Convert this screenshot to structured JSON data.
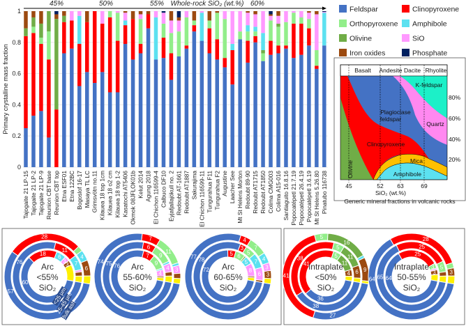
{
  "colors": {
    "feldspar": "#4472C4",
    "clinopyroxene": "#FF0000",
    "orthopyroxene": "#92EE8A",
    "olivine": "#70AD47",
    "amphibole": "#5CE1F0",
    "sio": "#FF99FF",
    "iron_oxides": "#9C4A10",
    "phosphate": "#002060",
    "other": "#FFF000"
  },
  "legend": [
    {
      "key": "feldspar",
      "label": "Feldspar"
    },
    {
      "key": "clinopyroxene",
      "label": "Clinopyroxene"
    },
    {
      "key": "orthopyroxene",
      "label": "Orthopyroxene"
    },
    {
      "key": "amphibole",
      "label": "Amphibole"
    },
    {
      "key": "olivine",
      "label": "Olivine"
    },
    {
      "key": "sio",
      "label": "SiO"
    },
    {
      "key": "iron_oxides",
      "label": "Iron oxides"
    },
    {
      "key": "phosphate",
      "label": "Phosphate"
    }
  ],
  "chart_data": [
    {
      "type": "bar",
      "stacked": true,
      "title": "",
      "ylabel": "Primary crystalline mass fraction",
      "xlabel": "",
      "ylim": [
        0,
        1
      ],
      "yticks": [
        "0",
        "0.2",
        "0.4",
        "0.6",
        "0.8",
        "1"
      ],
      "header": {
        "label": "Whole-rock SiO₂ (wt.%)",
        "marks": [
          "45%",
          "50%",
          "55%",
          "60%"
        ]
      },
      "series_order": [
        "feldspar",
        "clinopyroxene",
        "orthopyroxene",
        "olivine",
        "amphibole",
        "sio",
        "iron_oxides",
        "phosphate"
      ],
      "categories": [
        "Tajogaite 21 LP-15",
        "Tajogaite 21 LP-2",
        "Tajogaite 21 LP-9",
        "Reunion CBT base",
        "Reunion CBT top",
        "Etna ESF01",
        "Etna 122BC",
        "Bogoslof 16-17",
        "Masaya TL LC",
        "Grimsvötn no.11",
        "Kilauea 18 top 1cm",
        "Kilauea 18 o2 cm",
        "Kilauea 18 top 1-2",
        "Kasatochi AT5406",
        "Okmok 08JFLOK01b",
        "Kelut 2014",
        "Agung 2018",
        "El Chichon 116599-4",
        "Calbuco DF10",
        "Eyjafjallajökull no. 2",
        "Redoubt AT-1661",
        "Redoubt AT1887",
        "Sakurajima",
        "El Chichon 116599-11",
        "Tungurahua F11",
        "Tungurahua F2",
        "Augustine",
        "Laacher See",
        "Mt St Helens Morton",
        "Redoubt 89-90",
        "Redoubt AT1715",
        "Redoubt AT1850",
        "Colima CMG003",
        "Colima A15-016",
        "Santiaguito 16.8.16",
        "Popocatépetl 21.7.19",
        "Popocatépetl 26.4.19",
        "Popocatépetl 3.6.19",
        "Mt St Helens 5.26.80",
        "Pinatubo 116738"
      ],
      "values": [
        [
          0.25,
          0.59,
          0,
          0.05,
          0,
          0,
          0.11,
          0
        ],
        [
          0.33,
          0.53,
          0.04,
          0.06,
          0,
          0,
          0.04,
          0
        ],
        [
          0.36,
          0.43,
          0.04,
          0.09,
          0,
          0,
          0.08,
          0
        ],
        [
          0.19,
          0.5,
          0.18,
          0.13,
          0,
          0,
          0,
          0
        ],
        [
          0,
          0.37,
          0,
          0.58,
          0,
          0,
          0.03,
          0.02
        ],
        [
          0.73,
          0.2,
          0,
          0.04,
          0,
          0,
          0.03,
          0
        ],
        [
          0.76,
          0.18,
          0,
          0,
          0,
          0.06,
          0,
          0
        ],
        [
          0.52,
          0.27,
          0,
          0,
          0.18,
          0.03,
          0,
          0
        ],
        [
          0.61,
          0.32,
          0,
          0,
          0,
          0,
          0.07,
          0
        ],
        [
          0.54,
          0.46,
          0,
          0,
          0,
          0,
          0,
          0
        ],
        [
          0.61,
          0.31,
          0,
          0,
          0,
          0.08,
          0,
          0
        ],
        [
          0.48,
          0.48,
          0.04,
          0,
          0,
          0,
          0,
          0
        ],
        [
          0.48,
          0.33,
          0.18,
          0,
          0,
          0.01,
          0,
          0
        ],
        [
          0.79,
          0.12,
          0,
          0,
          0.03,
          0.05,
          0.01,
          0
        ],
        [
          0.69,
          0.26,
          0,
          0,
          0,
          0,
          0.05,
          0
        ],
        [
          0.73,
          0.06,
          0.16,
          0,
          0,
          0.03,
          0.02,
          0
        ],
        [
          0.89,
          0.09,
          0,
          0,
          0,
          0,
          0.02,
          0
        ],
        [
          0.69,
          0,
          0,
          0,
          0.27,
          0.04,
          0,
          0
        ],
        [
          0.7,
          0.13,
          0.09,
          0,
          0,
          0.07,
          0,
          0.01
        ],
        [
          0.56,
          0.17,
          0.13,
          0,
          0,
          0.08,
          0.06,
          0
        ],
        [
          0.71,
          0,
          0.16,
          0,
          0,
          0.07,
          0.02,
          0.04
        ],
        [
          0.76,
          0.02,
          0.18,
          0,
          0,
          0.04,
          0,
          0
        ],
        [
          0.87,
          0.04,
          0.03,
          0,
          0,
          0,
          0.06,
          0
        ],
        [
          0.81,
          0,
          0,
          0,
          0.18,
          0.01,
          0,
          0
        ],
        [
          0.73,
          0.16,
          0.05,
          0,
          0,
          0,
          0.06,
          0
        ],
        [
          0.69,
          0.13,
          0.17,
          0,
          0,
          0,
          0.01,
          0
        ],
        [
          0.64,
          0.06,
          0.25,
          0,
          0,
          0.05,
          0,
          0
        ],
        [
          0.53,
          0.22,
          0,
          0,
          0.04,
          0.21,
          0,
          0
        ],
        [
          0.82,
          0,
          0.05,
          0,
          0,
          0.13,
          0,
          0
        ],
        [
          0.67,
          0.14,
          0.06,
          0,
          0.04,
          0.08,
          0.01,
          0
        ],
        [
          0.8,
          0.04,
          0.03,
          0,
          0.03,
          0.08,
          0.02,
          0
        ],
        [
          0.68,
          0,
          0.05,
          0.02,
          0.11,
          0.14,
          0,
          0
        ],
        [
          0.72,
          0.09,
          0.13,
          0,
          0,
          0.03,
          0.01,
          0.02
        ],
        [
          0.73,
          0.05,
          0.12,
          0.02,
          0,
          0.05,
          0.03,
          0
        ],
        [
          0.76,
          0.02,
          0.15,
          0,
          0,
          0.07,
          0,
          0
        ],
        [
          0.7,
          0.22,
          0.07,
          0,
          0,
          0.01,
          0,
          0
        ],
        [
          0.72,
          0.2,
          0.04,
          0,
          0,
          0.04,
          0,
          0
        ],
        [
          0.78,
          0.11,
          0.06,
          0,
          0,
          0.04,
          0.01,
          0
        ],
        [
          0.63,
          0.02,
          0.1,
          0,
          0,
          0.23,
          0.02,
          0
        ],
        [
          0.78,
          0,
          0,
          0,
          0.21,
          0.005,
          0,
          0.005
        ]
      ]
    },
    {
      "type": "pie",
      "subtype": "nested-donut",
      "ring_labels": [
        "<25 µm",
        "25-45 µm",
        "Bulk ash"
      ],
      "component_order": [
        "clinopyroxene",
        "orthopyroxene",
        "olivine",
        "amphibole",
        "sio",
        "iron_oxides",
        "other",
        "feldspar"
      ],
      "donuts": [
        {
          "title": [
            "Arc",
            "<55%",
            "SiO₂"
          ],
          "rings": [
            [
              18,
              0,
              0,
              6,
              3,
              3,
              10,
              60
            ],
            [
              11,
              0,
              0,
              7,
              1,
              2,
              3,
              76
            ],
            [
              28,
              2,
              0,
              4,
              0,
              6,
              3,
              57
            ]
          ]
        },
        {
          "title": [
            "Arc",
            "55-60%",
            "SiO₂"
          ],
          "rings": [
            [
              7,
              9,
              0,
              1,
              4,
              1,
              2,
              76
            ],
            [
              6,
              9,
              0,
              1,
              4,
              2,
              3,
              75
            ],
            [
              7,
              11,
              0,
              1,
              3,
              2,
              2,
              74
            ]
          ]
        },
        {
          "title": [
            "Arc",
            "60-65%",
            "SiO₂"
          ],
          "rings": [
            [
              5,
              6,
              1,
              5,
              8,
              1,
              2,
              72
            ],
            [
              3,
              5,
              0,
              7,
              6,
              1,
              0,
              78
            ],
            [
              4,
              7,
              0,
              4,
              3,
              3,
              2,
              77
            ]
          ]
        },
        {
          "title": [
            "Intraplate",
            "<50%",
            "SiO₂"
          ],
          "rings": [
            [
              41,
              5,
              11,
              0,
              0,
              4,
              3,
              36
            ],
            [
              38,
              5,
              11,
              0,
              0,
              6,
              2,
              38
            ],
            [
              41,
              5,
              16,
              1,
              0,
              9,
              1,
              27
            ]
          ]
        },
        {
          "title": [
            "Intraplate",
            "50-55%",
            "SiO₂"
          ],
          "rings": [
            [
              25,
              3,
              0,
              0,
              1,
              3,
              4,
              64
            ],
            [
              25,
              5,
              0,
              0,
              0,
              2,
              3,
              65
            ],
            [
              28,
              2,
              0,
              0,
              0,
              3,
              3,
              64
            ]
          ]
        }
      ]
    }
  ],
  "inset": {
    "title": "Generic mineral fractions in volcanic rocks",
    "xlabel": "SiO₂ (wt.%)",
    "xticks": [
      "45",
      "52",
      "63",
      "69"
    ],
    "rock_types": [
      "Basalt",
      "Andesite",
      "Dacite",
      "Rhyolite"
    ],
    "yticks": [
      "80%",
      "60%",
      "40%",
      "20%"
    ],
    "regions": {
      "kfeldspar": "K-feldspar",
      "plagioclase_1": "Plagioclase",
      "plagioclase_2": "feldspar",
      "quartz": "Quartz",
      "clinopyroxene": "Clinopyroxene",
      "olivine": "Olivine",
      "mica": "Mica",
      "amphibole": "Amphibole"
    }
  }
}
